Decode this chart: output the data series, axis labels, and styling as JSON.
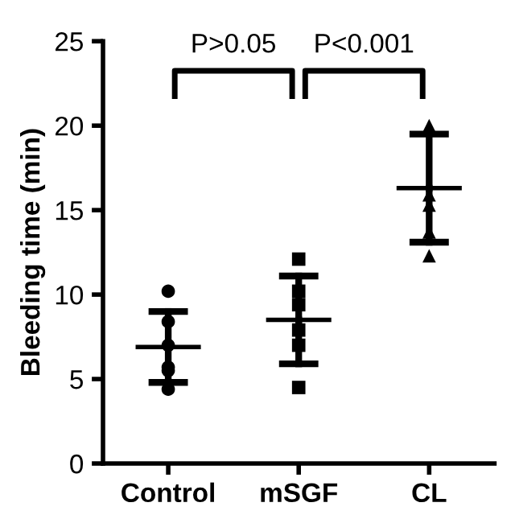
{
  "chart_data": {
    "type": "scatter",
    "ylabel": "Bleeding time (min)",
    "categories": [
      "Control",
      "mSGF",
      "CL"
    ],
    "series": [
      {
        "type": "scatter",
        "marker": "circle",
        "color": "#000000",
        "x": [
          "Control",
          "Control",
          "Control",
          "Control",
          "Control",
          "Control"
        ],
        "values": [
          10.2,
          8.4,
          7.0,
          5.7,
          5.5,
          4.4
        ]
      },
      {
        "type": "scatter",
        "marker": "square",
        "color": "#000000",
        "x": [
          "mSGF",
          "mSGF",
          "mSGF",
          "mSGF",
          "mSGF",
          "mSGF"
        ],
        "values": [
          12.1,
          10.2,
          9.4,
          7.9,
          7.0,
          4.5
        ]
      },
      {
        "type": "scatter",
        "marker": "triangle",
        "color": "#000000",
        "x": [
          "CL",
          "CL",
          "CL",
          "CL",
          "CL"
        ],
        "values": [
          20.0,
          15.9,
          15.3,
          13.7,
          12.3
        ]
      },
      {
        "type": "box",
        "color": "#000000",
        "boxes": [
          {
            "low": 4.8,
            "q1": 6.9,
            "median": 6.9,
            "q3": 6.9,
            "high": 9.0
          },
          {
            "low": 5.9,
            "q1": 8.5,
            "median": 8.5,
            "q3": 8.5,
            "high": 11.1
          },
          {
            "low": 13.1,
            "q1": 16.3,
            "median": 16.3,
            "q3": 16.3,
            "high": 19.5
          }
        ]
      }
    ],
    "ylim": [
      0,
      25
    ],
    "yticks": [
      0,
      5,
      10,
      15,
      20,
      25
    ],
    "grid": false,
    "legend": false,
    "annotations": [
      "P>0.05",
      "P<0.001"
    ]
  }
}
